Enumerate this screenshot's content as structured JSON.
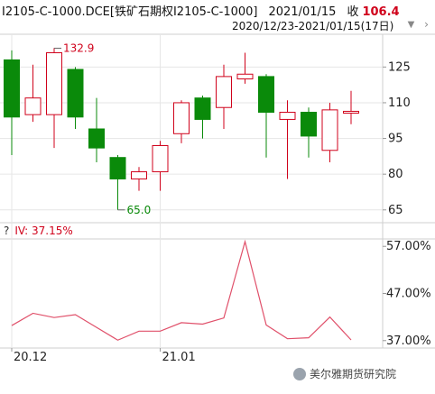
{
  "header": {
    "symbol": "I2105-C-1000.DCE[铁矿石期权I2105-C-1000]",
    "date": "2021/01/15",
    "close_label": "收",
    "close_value": "106.4",
    "range_text": "2020/12/23-2021/01/15(17日)"
  },
  "iv_panel": {
    "question": "?",
    "label": "IV: 37.15%"
  },
  "watermark": {
    "text": "美尔雅期货研究院"
  },
  "colors": {
    "up": "#d0021b",
    "down": "#0a8a0a",
    "iv_line": "#e0506a",
    "grid": "#e6e6e6"
  },
  "chart_data": [
    {
      "type": "candlestick",
      "y_ticks": [
        65,
        80,
        95,
        110,
        125
      ],
      "ylim": [
        60,
        138
      ],
      "x_tick_labels": [
        {
          "index": 0,
          "label": "20.12"
        },
        {
          "index": 7,
          "label": "21.01"
        }
      ],
      "annotations": [
        {
          "index": 2,
          "value": 132.9,
          "label": "132.9"
        },
        {
          "index": 5,
          "value": 65.0,
          "label": "65.0"
        }
      ],
      "candles": [
        {
          "open": 128,
          "high": 132,
          "low": 88,
          "close": 104
        },
        {
          "open": 105,
          "high": 126,
          "low": 102,
          "close": 112
        },
        {
          "open": 105,
          "high": 133,
          "low": 91,
          "close": 131
        },
        {
          "open": 124,
          "high": 125,
          "low": 99,
          "close": 104
        },
        {
          "open": 99,
          "high": 112,
          "low": 85,
          "close": 91
        },
        {
          "open": 87,
          "high": 88,
          "low": 65,
          "close": 78
        },
        {
          "open": 78,
          "high": 83,
          "low": 73,
          "close": 81
        },
        {
          "open": 81,
          "high": 94,
          "low": 73,
          "close": 92
        },
        {
          "open": 97,
          "high": 111,
          "low": 93,
          "close": 110
        },
        {
          "open": 112,
          "high": 113,
          "low": 95,
          "close": 103
        },
        {
          "open": 108,
          "high": 126,
          "low": 99,
          "close": 121
        },
        {
          "open": 120,
          "high": 131,
          "low": 118,
          "close": 122
        },
        {
          "open": 121,
          "high": 122,
          "low": 87,
          "close": 106
        },
        {
          "open": 103,
          "high": 111,
          "low": 78,
          "close": 106
        },
        {
          "open": 106,
          "high": 108,
          "low": 87,
          "close": 96
        },
        {
          "open": 90,
          "high": 110,
          "low": 85,
          "close": 107
        },
        {
          "open": 106,
          "high": 115,
          "low": 101,
          "close": 106.4
        }
      ]
    },
    {
      "type": "line",
      "name": "IV",
      "y_ticks": [
        37,
        47,
        57
      ],
      "y_tick_labels": [
        "37.00%",
        "47.00%",
        "57.00%"
      ],
      "ylim": [
        36,
        58
      ],
      "values": [
        40.2,
        42.8,
        41.9,
        42.5,
        39.8,
        37.1,
        39.0,
        39.0,
        40.8,
        40.5,
        41.8,
        58.0,
        40.3,
        37.4,
        37.6,
        42.0,
        37.15
      ]
    }
  ]
}
